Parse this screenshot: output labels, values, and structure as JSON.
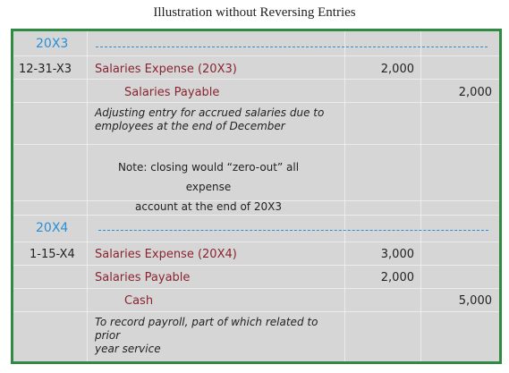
{
  "title": "Illustration without Reversing Entries",
  "section1": {
    "year": "20X3",
    "date": "12-31-X3",
    "debit_account": "Salaries Expense (20X3)",
    "debit_amount": "2,000",
    "credit_account": "Salaries Payable",
    "credit_amount": "2,000",
    "explanation_line1": "Adjusting entry for accrued salaries due to",
    "explanation_line2": "employees at the end of December",
    "note_line1": "Note: closing would “zero-out” all expense",
    "note_line2": "account at the end of 20X3"
  },
  "section2": {
    "year": "20X4",
    "date": "1-15-X4",
    "debit1_account": "Salaries Expense (20X4)",
    "debit1_amount": "3,000",
    "debit2_account": "Salaries Payable",
    "debit2_amount": "2,000",
    "credit_account": "Cash",
    "credit_amount": "5,000",
    "explanation_line1": "To record payroll, part of which related to prior",
    "explanation_line2": "year service"
  },
  "colors": {
    "frame_border": "#2f8b42",
    "year_text": "#2a8fd4",
    "account_text": "#8a2430",
    "background": "#d6d6d6"
  }
}
